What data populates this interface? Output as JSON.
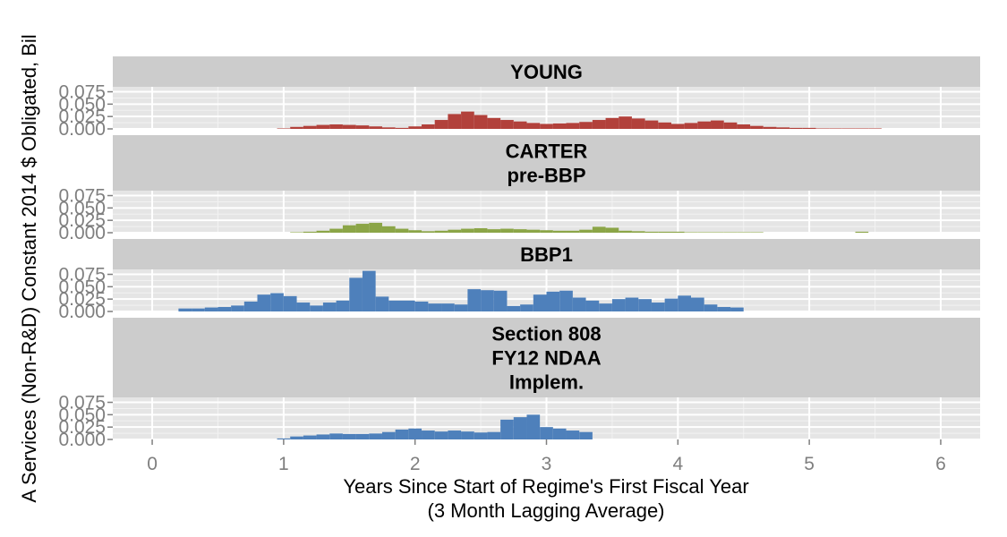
{
  "chart_data": {
    "type": "bar",
    "xlabel": "Years Since Start of Regime's First Fiscal Year",
    "xlabel_note": "(3 Month Lagging Average)",
    "ylabel": "A Services (Non-R&D) Constant 2014 $ Obligated, Bil",
    "xlim": [
      -0.3,
      6.3
    ],
    "x_ticks": [
      "0",
      "1",
      "2",
      "3",
      "4",
      "5",
      "6"
    ],
    "ylim": [
      0,
      0.085
    ],
    "y_ticks": [
      "0.000",
      "0.025",
      "0.050",
      "0.075"
    ],
    "grid": true,
    "bin_width": 0.1,
    "panels": [
      {
        "strip": [
          "YOUNG"
        ],
        "color": "#B2413B",
        "x_start": 0.95,
        "values": [
          0.001,
          0.004,
          0.006,
          0.008,
          0.009,
          0.008,
          0.007,
          0.005,
          0.003,
          0.002,
          0.005,
          0.009,
          0.018,
          0.03,
          0.035,
          0.028,
          0.022,
          0.018,
          0.015,
          0.012,
          0.01,
          0.011,
          0.012,
          0.014,
          0.018,
          0.022,
          0.025,
          0.021,
          0.017,
          0.013,
          0.01,
          0.012,
          0.015,
          0.017,
          0.013,
          0.009,
          0.006,
          0.004,
          0.003,
          0.002,
          0.002,
          0.001,
          0.001,
          0.001,
          0.001,
          0.001
        ]
      },
      {
        "strip": [
          "CARTER",
          "pre-BBP"
        ],
        "color": "#8BA547",
        "x_start": 1.05,
        "values": [
          0.001,
          0.002,
          0.004,
          0.008,
          0.015,
          0.018,
          0.02,
          0.013,
          0.008,
          0.005,
          0.003,
          0.004,
          0.006,
          0.008,
          0.009,
          0.007,
          0.008,
          0.007,
          0.006,
          0.005,
          0.004,
          0.004,
          0.006,
          0.012,
          0.01,
          0.004,
          0.003,
          0.002,
          0.002,
          0.002,
          0.001,
          0.001,
          0.001,
          0.001,
          0.001,
          0.001,
          0,
          0,
          0,
          0,
          0,
          0,
          0,
          0.002,
          0
        ]
      },
      {
        "strip": [
          "BBP1"
        ],
        "color": "#4E80BB",
        "x_start": 0.2,
        "values": [
          0.006,
          0.006,
          0.008,
          0.009,
          0.012,
          0.02,
          0.034,
          0.037,
          0.031,
          0.018,
          0.012,
          0.018,
          0.022,
          0.068,
          0.082,
          0.03,
          0.022,
          0.022,
          0.02,
          0.016,
          0.016,
          0.014,
          0.045,
          0.043,
          0.042,
          0.011,
          0.014,
          0.034,
          0.04,
          0.042,
          0.028,
          0.022,
          0.016,
          0.025,
          0.028,
          0.025,
          0.018,
          0.026,
          0.032,
          0.028,
          0.014,
          0.009,
          0.008
        ]
      },
      {
        "strip": [
          "Section 808",
          "FY12 NDAA",
          "Implem."
        ],
        "color": "#4E80BB",
        "x_start": 0.95,
        "values": [
          0.002,
          0.006,
          0.008,
          0.01,
          0.012,
          0.011,
          0.011,
          0.012,
          0.015,
          0.02,
          0.022,
          0.018,
          0.016,
          0.018,
          0.016,
          0.014,
          0.015,
          0.04,
          0.045,
          0.05,
          0.025,
          0.022,
          0.018,
          0.015
        ]
      }
    ]
  }
}
